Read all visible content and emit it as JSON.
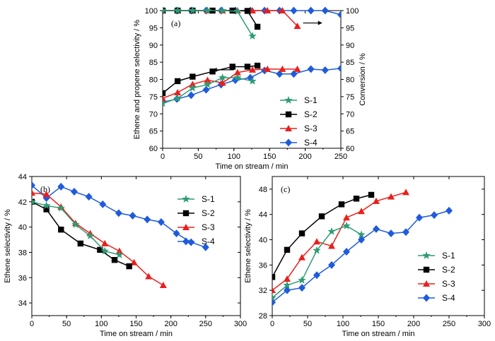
{
  "colors": {
    "S-1": "#2e9c74",
    "S-2": "#000000",
    "S-3": "#e8201c",
    "S-4": "#1f5bdc"
  },
  "markers": {
    "S-1": "star",
    "S-2": "square",
    "S-3": "triangle",
    "S-4": "diamond"
  },
  "chart_data": [
    {
      "panel": "(a)",
      "type": "line",
      "xlabel": "Time on stream / min",
      "ylabel": "Ethene and propene selectivity / %",
      "y2label": "Conversion / %",
      "xlim": [
        0,
        250
      ],
      "ylim": [
        60,
        100
      ],
      "y2lim": [
        60,
        100
      ],
      "xticks": [
        "0",
        "50",
        "100",
        "150",
        "200",
        "250"
      ],
      "yticks": [
        "60",
        "65",
        "70",
        "75",
        "80",
        "85",
        "90",
        "95",
        "100"
      ],
      "legend": [
        "S-1",
        "S-2",
        "S-3",
        "S-4"
      ],
      "legend_position": "bottom-right",
      "arrows": [
        "left (selectivity axis)",
        "right (conversion axis)"
      ],
      "series": [
        {
          "name": "S-1",
          "kind": "selectivity",
          "x": [
            0,
            21,
            42,
            63,
            84,
            105,
            126
          ],
          "y": [
            73.0,
            74.5,
            77.5,
            78.5,
            80.5,
            80.5,
            79.5
          ]
        },
        {
          "name": "S-2",
          "kind": "selectivity",
          "x": [
            0,
            21,
            42,
            70,
            98,
            119,
            133
          ],
          "y": [
            76.0,
            79.5,
            80.8,
            82.3,
            83.7,
            83.7,
            84.0
          ]
        },
        {
          "name": "S-3",
          "kind": "selectivity",
          "x": [
            0,
            21,
            42,
            63,
            84,
            105,
            126,
            147,
            168,
            189
          ],
          "y": [
            74.5,
            76.2,
            78.6,
            79.8,
            79.0,
            82.0,
            82.8,
            83.0,
            83.0,
            83.0
          ]
        },
        {
          "name": "S-4",
          "kind": "selectivity",
          "x": [
            0,
            20,
            40,
            61,
            82,
            102,
            123,
            143,
            164,
            184,
            208,
            228,
            250
          ],
          "y": [
            73.4,
            74.3,
            75.4,
            77.0,
            78.5,
            79.8,
            80.5,
            82.6,
            81.6,
            81.6,
            83.0,
            82.7,
            83.2
          ]
        },
        {
          "name": "S-1",
          "kind": "conversion",
          "x": [
            0,
            21,
            42,
            63,
            84,
            105,
            126
          ],
          "y": [
            100,
            100,
            100,
            100,
            100,
            99.8,
            92.6
          ]
        },
        {
          "name": "S-2",
          "kind": "conversion",
          "x": [
            0,
            21,
            42,
            70,
            98,
            119,
            133
          ],
          "y": [
            100,
            100,
            100,
            100,
            100,
            99.9,
            95.3
          ]
        },
        {
          "name": "S-3",
          "kind": "conversion",
          "x": [
            0,
            21,
            42,
            63,
            84,
            105,
            126,
            147,
            168,
            189
          ],
          "y": [
            100,
            100,
            100,
            100,
            100,
            100,
            100,
            100,
            100,
            95.5
          ]
        },
        {
          "name": "S-4",
          "kind": "conversion",
          "x": [
            0,
            20,
            40,
            61,
            82,
            102,
            123,
            143,
            164,
            184,
            208,
            228,
            250
          ],
          "y": [
            100,
            100,
            100,
            100,
            100,
            100,
            100,
            100,
            100,
            100,
            100,
            100,
            98.8
          ]
        }
      ]
    },
    {
      "panel": "(b)",
      "type": "line",
      "xlabel": "Time on stream / min",
      "ylabel": "Ethene selectivity / %",
      "xlim": [
        0,
        300
      ],
      "ylim": [
        33,
        44
      ],
      "xticks": [
        "0",
        "50",
        "100",
        "150",
        "200",
        "250",
        "300"
      ],
      "yticks": [
        "34",
        "36",
        "38",
        "40",
        "42",
        "44"
      ],
      "legend": [
        "S-1",
        "S-2",
        "S-3",
        "S-4"
      ],
      "legend_position": "top-right",
      "series": [
        {
          "name": "S-1",
          "x": [
            0,
            21,
            42,
            63,
            84,
            105,
            126
          ],
          "y": [
            42.0,
            41.7,
            41.5,
            40.2,
            39.3,
            38.1,
            37.8
          ]
        },
        {
          "name": "S-2",
          "x": [
            0,
            21,
            42,
            70,
            98,
            119,
            140
          ],
          "y": [
            42.0,
            41.4,
            39.8,
            38.7,
            38.2,
            37.4,
            36.9
          ]
        },
        {
          "name": "S-3",
          "x": [
            0,
            21,
            42,
            63,
            84,
            105,
            126,
            147,
            168,
            189
          ],
          "y": [
            42.7,
            42.6,
            41.6,
            40.3,
            39.5,
            38.7,
            38.1,
            37.2,
            36.1,
            35.4
          ]
        },
        {
          "name": "S-4",
          "x": [
            0,
            21,
            42,
            61,
            82,
            102,
            125,
            145,
            166,
            186,
            208,
            229,
            250
          ],
          "y": [
            43.3,
            42.3,
            43.2,
            42.8,
            42.4,
            41.8,
            41.1,
            40.9,
            40.6,
            40.4,
            39.5,
            38.8,
            38.4
          ]
        }
      ]
    },
    {
      "panel": "(c)",
      "type": "line",
      "xlabel": "Time on stream / min",
      "ylabel": "Ethene selectivity / %",
      "xlim": [
        0,
        300
      ],
      "ylim": [
        28,
        50
      ],
      "xticks": [
        "0",
        "50",
        "100",
        "150",
        "200",
        "250",
        "300"
      ],
      "yticks": [
        "28",
        "32",
        "36",
        "40",
        "44",
        "48"
      ],
      "legend": [
        "S-1",
        "S-2",
        "S-3",
        "S-4"
      ],
      "legend_position": "bottom-right",
      "series": [
        {
          "name": "S-1",
          "x": [
            0,
            21,
            42,
            63,
            84,
            105,
            126
          ],
          "y": [
            30.8,
            32.8,
            33.6,
            38.3,
            41.3,
            42.2,
            40.8
          ]
        },
        {
          "name": "S-2",
          "x": [
            0,
            21,
            42,
            70,
            98,
            119,
            140
          ],
          "y": [
            34.1,
            38.4,
            41.0,
            43.7,
            45.6,
            46.5,
            47.1
          ]
        },
        {
          "name": "S-3",
          "x": [
            0,
            21,
            42,
            63,
            84,
            105,
            126,
            147,
            168,
            189
          ],
          "y": [
            32.0,
            33.8,
            37.2,
            39.7,
            39.0,
            43.5,
            44.5,
            46.1,
            46.8,
            47.5
          ]
        },
        {
          "name": "S-4",
          "x": [
            0,
            21,
            42,
            63,
            84,
            105,
            126,
            147,
            168,
            189,
            208,
            229,
            250
          ],
          "y": [
            30.1,
            32.0,
            32.4,
            34.4,
            36.0,
            38.1,
            40.0,
            41.7,
            41.0,
            41.2,
            43.5,
            43.9,
            44.6
          ]
        }
      ]
    }
  ]
}
